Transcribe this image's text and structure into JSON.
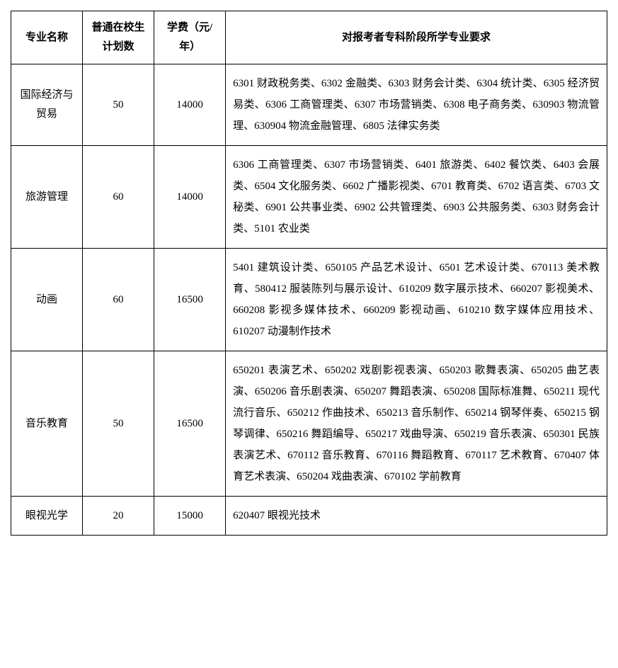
{
  "table": {
    "columns": {
      "name": "专业名称",
      "plan": "普通在校生计划数",
      "fee": "学费（元/年）",
      "req": "对报考者专科阶段所学专业要求"
    },
    "rows": [
      {
        "name": "国际经济与贸易",
        "plan": "50",
        "fee": "14000",
        "req": "6301 财政税务类、6302 金融类、6303 财务会计类、6304 统计类、6305 经济贸易类、6306 工商管理类、6307 市场营销类、6308 电子商务类、630903 物流管理、630904 物流金融管理、6805 法律实务类"
      },
      {
        "name": "旅游管理",
        "plan": "60",
        "fee": "14000",
        "req": "6306 工商管理类、6307 市场营销类、6401 旅游类、6402 餐饮类、6403 会展类、6504 文化服务类、6602 广播影视类、6701 教育类、6702 语言类、6703 文秘类、6901 公共事业类、6902 公共管理类、6903 公共服务类、6303 财务会计类、5101 农业类"
      },
      {
        "name": "动画",
        "plan": "60",
        "fee": "16500",
        "req": "5401 建筑设计类、650105 产品艺术设计、6501 艺术设计类、670113 美术教育、580412 服装陈列与展示设计、610209 数字展示技术、660207 影视美术、660208 影视多媒体技术、660209 影视动画、610210 数字媒体应用技术、610207 动漫制作技术"
      },
      {
        "name": "音乐教育",
        "plan": "50",
        "fee": "16500",
        "req": "650201 表演艺术、650202 戏剧影视表演、650203 歌舞表演、650205 曲艺表演、650206 音乐剧表演、650207 舞蹈表演、650208 国际标准舞、650211 现代流行音乐、650212 作曲技术、650213 音乐制作、650214 钢琴伴奏、650215 钢琴调律、650216 舞蹈编导、650217 戏曲导演、650219 音乐表演、650301 民族表演艺术、670112 音乐教育、670116 舞蹈教育、670117 艺术教育、670407 体育艺术表演、650204 戏曲表演、670102 学前教育"
      },
      {
        "name": "眼视光学",
        "plan": "20",
        "fee": "15000",
        "req": "620407 眼视光技术"
      }
    ],
    "styling": {
      "border_color": "#000000",
      "background_color": "#ffffff",
      "text_color": "#000000",
      "font_family": "SimSun",
      "header_font_weight": "bold",
      "body_font_size": 15,
      "line_height": 2.0,
      "column_widths_percent": [
        12,
        12,
        12,
        64
      ],
      "column_alignments": [
        "center",
        "center",
        "center",
        "justify"
      ]
    }
  }
}
